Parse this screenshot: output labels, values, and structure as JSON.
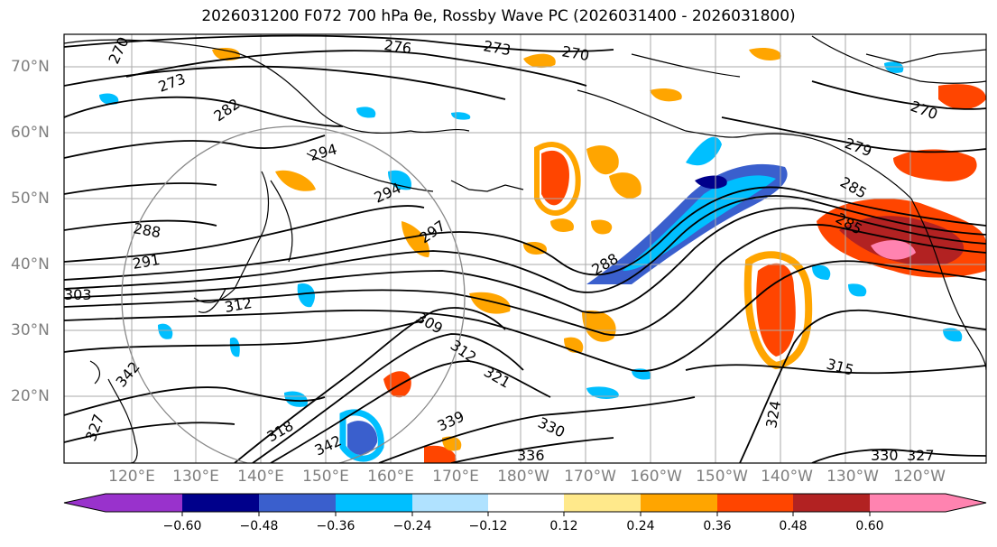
{
  "title": "2026031200 F072 700 hPa θe, Rossby Wave PC (2026031400 - 2026031800)",
  "map": {
    "lat_labels": [
      "70°N",
      "60°N",
      "50°N",
      "40°N",
      "30°N",
      "20°N"
    ],
    "lon_labels": [
      "120°E",
      "130°E",
      "140°E",
      "150°E",
      "160°E",
      "170°E",
      "180°W",
      "170°W",
      "160°W",
      "150°W",
      "140°W",
      "130°W",
      "120°W"
    ],
    "contour_labels": [
      "270",
      "273",
      "276",
      "273",
      "270",
      "282",
      "294",
      "294",
      "297",
      "288",
      "291",
      "303",
      "309",
      "312",
      "321",
      "342",
      "339",
      "330",
      "336",
      "342",
      "318",
      "315",
      "324",
      "327",
      "330",
      "327",
      "279",
      "270",
      "285",
      "285",
      "288",
      "312"
    ]
  },
  "colorbar": {
    "tick_labels": [
      "−0.60",
      "−0.48",
      "−0.36",
      "−0.24",
      "−0.12",
      "0.12",
      "0.24",
      "0.36",
      "0.48",
      "0.60"
    ],
    "colors": [
      "#9932cc",
      "#00008b",
      "#3a5fcd",
      "#00bfff",
      "#b0e2ff",
      "#ffffff",
      "#ffe98b",
      "#ffa500",
      "#ff4500",
      "#b22222",
      "#ff83b0",
      "#ff83b0"
    ]
  }
}
